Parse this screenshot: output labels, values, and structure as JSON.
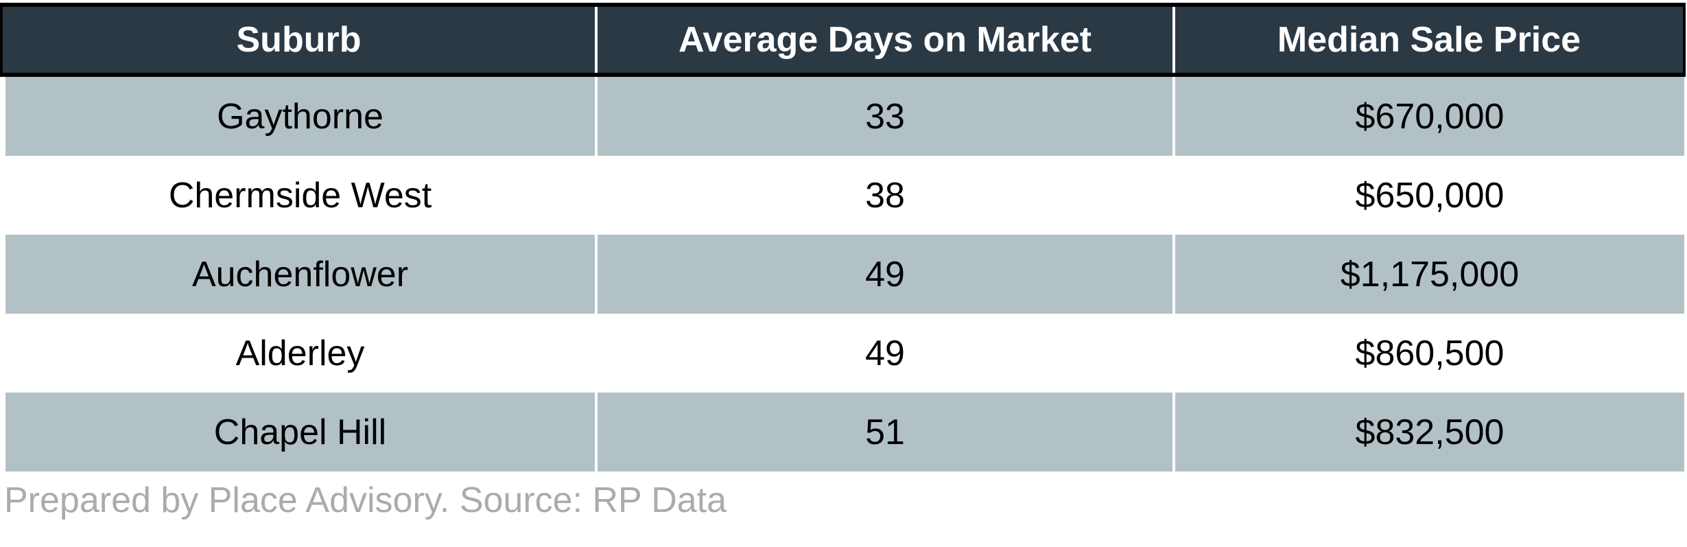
{
  "table": {
    "columns": [
      {
        "label": "Suburb"
      },
      {
        "label": "Average Days on Market"
      },
      {
        "label": "Median Sale Price"
      }
    ],
    "rows": [
      {
        "cells": [
          "Gaythorne",
          "33",
          "$670,000"
        ]
      },
      {
        "cells": [
          "Chermside West",
          "38",
          "$650,000"
        ]
      },
      {
        "cells": [
          "Auchenflower",
          "49",
          "$1,175,000"
        ]
      },
      {
        "cells": [
          "Alderley",
          "49",
          "$860,500"
        ]
      },
      {
        "cells": [
          "Chapel Hill",
          "51",
          "$832,500"
        ]
      }
    ]
  },
  "footer": {
    "credit": "Prepared by Place Advisory. Source: RP Data"
  },
  "colors": {
    "header_background": "#2B3945",
    "header_text": "#FFFFFF",
    "row_shaded_background": "#B2C1C6",
    "row_plain_background": "#FFFFFF",
    "border_black": "#000000",
    "body_text": "#000000",
    "footer_text": "#A9ABAC"
  },
  "chart_data": {
    "type": "table",
    "title": "",
    "columns": [
      "Suburb",
      "Average Days on Market",
      "Median Sale Price"
    ],
    "categories": [
      "Gaythorne",
      "Chermside West",
      "Auchenflower",
      "Alderley",
      "Chapel Hill"
    ],
    "series": [
      {
        "name": "Average Days on Market",
        "values": [
          33,
          38,
          49,
          49,
          51
        ]
      },
      {
        "name": "Median Sale Price",
        "values": [
          670000,
          650000,
          1175000,
          860500,
          832500
        ]
      }
    ],
    "rows": [
      [
        "Gaythorne",
        33,
        "$670,000"
      ],
      [
        "Chermside West",
        38,
        "$650,000"
      ],
      [
        "Auchenflower",
        49,
        "$1,175,000"
      ],
      [
        "Alderley",
        49,
        "$860,500"
      ],
      [
        "Chapel Hill",
        51,
        "$832,500"
      ]
    ],
    "source_note": "Prepared by Place Advisory. Source: RP Data",
    "layout": {
      "header_style": "dark-band-black-border",
      "row_banding": "shaded-odd-rows",
      "text_alignment": "center"
    }
  }
}
